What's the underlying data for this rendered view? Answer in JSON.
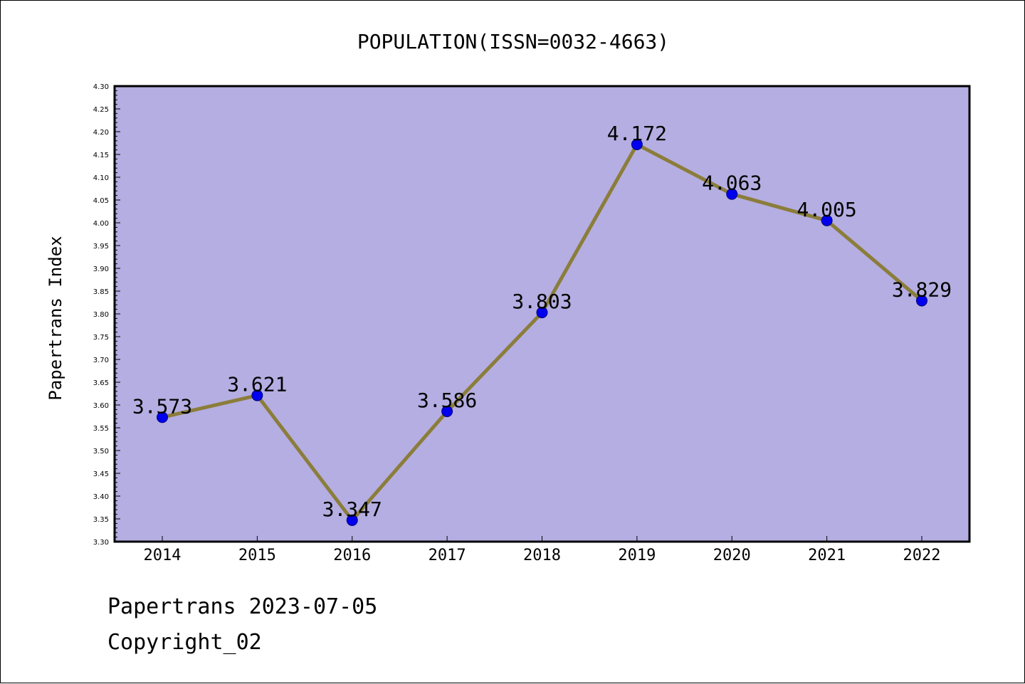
{
  "chart_data": {
    "type": "line",
    "title": "POPULATION(ISSN=0032-4663)",
    "ylabel": "Papertrans Index",
    "xlabel": "",
    "categories": [
      "2014",
      "2015",
      "2016",
      "2017",
      "2018",
      "2019",
      "2020",
      "2021",
      "2022"
    ],
    "values": [
      3.573,
      3.621,
      3.347,
      3.586,
      3.803,
      4.172,
      4.063,
      4.005,
      3.829
    ],
    "data_labels": [
      "3.573",
      "3.621",
      "3.347",
      "3.586",
      "3.803",
      "4.172",
      "4.063",
      "4.005",
      "3.829"
    ],
    "ylim": [
      3.3,
      4.3
    ],
    "yticks": [
      "3.30",
      "3.35",
      "3.40",
      "3.45",
      "3.50",
      "3.55",
      "3.60",
      "3.65",
      "3.70",
      "3.75",
      "3.80",
      "3.85",
      "3.90",
      "3.95",
      "4.00",
      "4.05",
      "4.10",
      "4.15",
      "4.20",
      "4.25",
      "4.30"
    ],
    "grid": false,
    "colors": {
      "plot_background": "#b4aee2",
      "line": "#8b7d3a",
      "marker": "#0000ee",
      "marker_edge": "#00007a"
    }
  },
  "footer": {
    "line1": "Papertrans 2023-07-05",
    "line2": "Copyright_02"
  }
}
